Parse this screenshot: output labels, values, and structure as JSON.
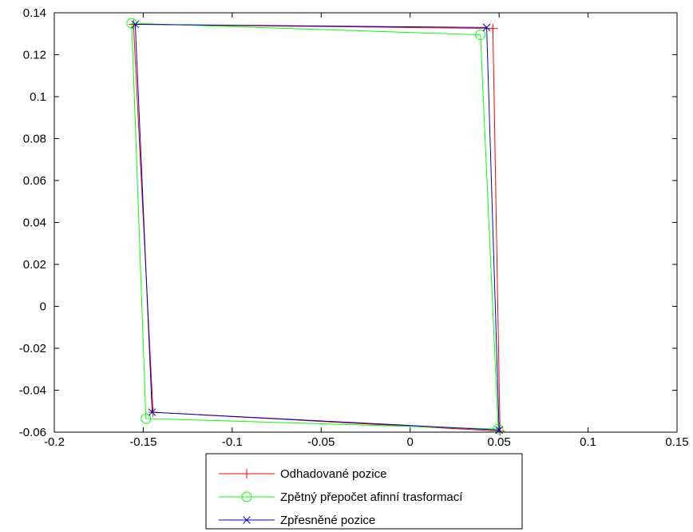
{
  "chart_data": {
    "type": "line",
    "title": "",
    "xlabel": "",
    "ylabel": "",
    "xlim": [
      -0.2,
      0.15
    ],
    "ylim": [
      -0.06,
      0.14
    ],
    "x_ticks": [
      -0.2,
      -0.15,
      -0.1,
      -0.05,
      0,
      0.05,
      0.1,
      0.15
    ],
    "x_tick_labels": [
      "-0.2",
      "-0.15",
      "-0.1",
      "-0.05",
      "0",
      "0.05",
      "0.1",
      "0.15"
    ],
    "y_ticks": [
      -0.06,
      -0.04,
      -0.02,
      0,
      0.02,
      0.04,
      0.06,
      0.08,
      0.1,
      0.12,
      0.14
    ],
    "y_tick_labels": [
      "-0.06",
      "-0.04",
      "-0.02",
      "0",
      "0.02",
      "0.04",
      "0.06",
      "0.08",
      "0.1",
      "0.12",
      "0.14"
    ],
    "grid": false,
    "legend_position": "below",
    "series": [
      {
        "name": "Odhadované pozice",
        "color": "#ff0000",
        "marker": "plus",
        "x": [
          -0.1555,
          0.0465,
          0.0505,
          -0.1445,
          -0.1555
        ],
        "y": [
          0.1345,
          0.1325,
          -0.0595,
          -0.0505,
          0.1345
        ]
      },
      {
        "name": "Zpětný přepočet afinní trasformací",
        "color": "#00ff00",
        "marker": "circle",
        "x": [
          -0.1565,
          0.0395,
          0.0495,
          -0.1485,
          -0.1565
        ],
        "y": [
          0.135,
          0.1295,
          -0.0585,
          -0.0535,
          0.135
        ]
      },
      {
        "name": "Zpřesněné pozice",
        "color": "#0000cc",
        "marker": "x",
        "x": [
          -0.1545,
          0.043,
          0.05,
          -0.145,
          -0.1545
        ],
        "y": [
          0.1345,
          0.133,
          -0.059,
          -0.0505,
          0.1345
        ]
      }
    ]
  }
}
